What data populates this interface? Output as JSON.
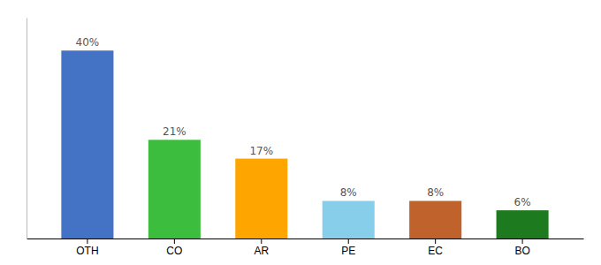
{
  "chart_data": {
    "type": "bar",
    "categories": [
      "OTH",
      "CO",
      "AR",
      "PE",
      "EC",
      "BO"
    ],
    "values": [
      40,
      21,
      17,
      8,
      8,
      6
    ],
    "value_labels": [
      "40%",
      "21%",
      "17%",
      "8%",
      "8%",
      "6%"
    ],
    "colors": [
      "#4472C4",
      "#3DBD3D",
      "#FFA500",
      "#87CEEB",
      "#C0622B",
      "#1E7A1E"
    ],
    "ylim": [
      0,
      47
    ],
    "data_labels": true,
    "tick_labels": "x"
  }
}
